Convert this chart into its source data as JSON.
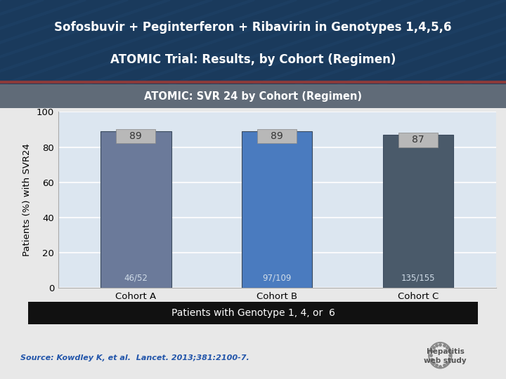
{
  "title_line1": "Sofosbuvir + Peginterferon + Ribavirin in Genotypes 1,4,5,6",
  "title_line2": "ATOMIC Trial: Results, by Cohort (Regimen)",
  "subtitle": "ATOMIC: SVR 24 by Cohort (Regimen)",
  "categories": [
    "Cohort A",
    "Cohort B",
    "Cohort C"
  ],
  "values": [
    89,
    89,
    87
  ],
  "fractions": [
    "46/52",
    "97/109",
    "135/155"
  ],
  "bar_colors": [
    "#6b7a9a",
    "#4a7bbf",
    "#4a5a6a"
  ],
  "ylabel": "Patients (%) with SVR24",
  "ylim": [
    0,
    100
  ],
  "yticks": [
    0,
    20,
    40,
    60,
    80,
    100
  ],
  "footer_label": "Patients with Genotype 1, 4, or  6",
  "source_text": "Source: Kowdley K, et al.  Lancet. 2013;381:2100-7.",
  "header_bg_top": "#1a3a5c",
  "header_bg_bottom": "#1a3a5c",
  "subtitle_bg": "#606b78",
  "chart_bg": "#dce6f0",
  "footer_bg": "#111111",
  "value_label_bg": "#b8b8b8",
  "value_label_color": "#333333",
  "fraction_color": "#d0dce8",
  "bar_edge_color": "#3a4a5e",
  "fig_bg": "#e8e8e8",
  "accent_line_color": "#8b3a3a",
  "source_color": "#2255aa"
}
